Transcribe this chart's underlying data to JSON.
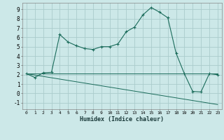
{
  "xlabel": "Humidex (Indice chaleur)",
  "bg_color": "#cce8e8",
  "grid_color": "#aacccc",
  "line_color": "#1a6b5a",
  "x_ticks": [
    0,
    1,
    2,
    3,
    4,
    5,
    6,
    7,
    8,
    9,
    10,
    11,
    12,
    13,
    14,
    15,
    16,
    17,
    18,
    19,
    20,
    21,
    22,
    23
  ],
  "y_ticks": [
    -1,
    0,
    1,
    2,
    3,
    4,
    5,
    6,
    7,
    8,
    9
  ],
  "xlim": [
    -0.5,
    23.5
  ],
  "ylim": [
    -1.7,
    9.7
  ],
  "series1_x": [
    0,
    1,
    2,
    3,
    4,
    5,
    6,
    7,
    8,
    9,
    10,
    11,
    12,
    13,
    14,
    15,
    16,
    17,
    18,
    19,
    20,
    21,
    22,
    23
  ],
  "series1_y": [
    2.1,
    1.7,
    2.2,
    2.25,
    6.3,
    5.5,
    5.1,
    4.8,
    4.7,
    5.0,
    5.0,
    5.3,
    6.6,
    7.1,
    8.4,
    9.2,
    8.7,
    8.1,
    4.3,
    2.1,
    0.2,
    0.15,
    2.1,
    2.0
  ],
  "series2_x": [
    0,
    15,
    19,
    23
  ],
  "series2_y": [
    2.1,
    2.1,
    2.1,
    2.1
  ],
  "series3_x": [
    0,
    23
  ],
  "series3_y": [
    2.1,
    -1.2
  ]
}
